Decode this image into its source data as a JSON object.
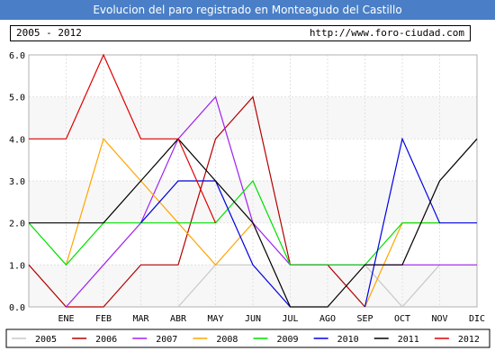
{
  "title": "Evolucion del paro registrado en Monteagudo del Castillo",
  "subheader": {
    "period": "2005 - 2012",
    "url": "http://www.foro-ciudad.com"
  },
  "chart_data": {
    "type": "line",
    "categories": [
      "",
      "ENE",
      "FEB",
      "MAR",
      "ABR",
      "MAY",
      "JUN",
      "JUL",
      "AGO",
      "SEP",
      "OCT",
      "NOV",
      "DIC"
    ],
    "ylim": [
      0,
      6
    ],
    "yticks": [
      "0.0",
      "1.0",
      "2.0",
      "3.0",
      "4.0",
      "5.0",
      "6.0"
    ],
    "grid": true,
    "legend_position": "bottom",
    "series": [
      {
        "name": "2005",
        "color": "#c8c8c8",
        "values": [
          null,
          null,
          null,
          null,
          0,
          1,
          1,
          null,
          null,
          1,
          0,
          1,
          null
        ]
      },
      {
        "name": "2006",
        "color": "#b40000",
        "values": [
          1,
          0,
          0,
          1,
          1,
          4,
          5,
          1,
          1,
          0,
          null,
          null,
          null
        ]
      },
      {
        "name": "2007",
        "color": "#a020f0",
        "values": [
          null,
          0,
          1,
          2,
          4,
          5,
          2,
          1,
          1,
          1,
          1,
          1,
          1
        ]
      },
      {
        "name": "2008",
        "color": "#ffa500",
        "values": [
          null,
          1,
          4,
          3,
          2,
          1,
          2,
          null,
          null,
          0,
          2,
          2,
          null
        ]
      },
      {
        "name": "2009",
        "color": "#00e000",
        "values": [
          2,
          1,
          2,
          2,
          2,
          2,
          3,
          1,
          1,
          1,
          2,
          2,
          null
        ]
      },
      {
        "name": "2010",
        "color": "#0000e0",
        "values": [
          null,
          null,
          null,
          2,
          3,
          3,
          1,
          0,
          null,
          0,
          4,
          2,
          2
        ]
      },
      {
        "name": "2011",
        "color": "#000000",
        "values": [
          2,
          2,
          2,
          3,
          4,
          3,
          2,
          0,
          0,
          1,
          1,
          3,
          4
        ]
      },
      {
        "name": "2012",
        "color": "#e00000",
        "values": [
          4,
          4,
          6,
          4,
          4,
          2,
          null,
          null,
          null,
          null,
          null,
          null,
          null
        ]
      }
    ]
  }
}
